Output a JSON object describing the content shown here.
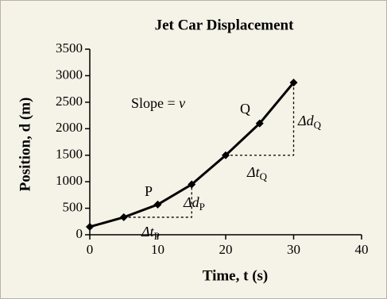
{
  "chart_data": {
    "type": "line",
    "title": "Jet Car Displacement",
    "x_label": "Time, t (s)",
    "y_label": "Position, d (m)",
    "x": [
      0,
      5,
      10,
      15,
      20,
      25,
      30
    ],
    "series": [
      {
        "name": "Position",
        "color": "#000000",
        "values": [
          150,
          330,
          570,
          950,
          1500,
          2100,
          2870
        ]
      }
    ],
    "xlim": [
      0,
      40
    ],
    "xticks": [
      0,
      10,
      20,
      30,
      40
    ],
    "ylim": [
      0,
      3500
    ],
    "yticks": [
      0,
      500,
      1000,
      1500,
      2000,
      2500,
      3000,
      3500
    ],
    "grid": false,
    "annotations": {
      "slope": {
        "text": "Slope = ",
        "symbol": "v"
      },
      "p": "P",
      "q": "Q",
      "dd_p": {
        "text": "Δd",
        "sub": "P"
      },
      "dt_p": {
        "text": "Δt",
        "sub": "P"
      },
      "dd_q": {
        "text": "Δd",
        "sub": "Q"
      },
      "dt_q": {
        "text": "Δt",
        "sub": "Q"
      }
    }
  }
}
